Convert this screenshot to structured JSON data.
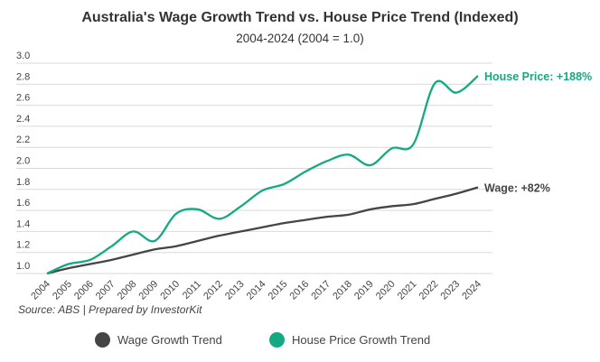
{
  "chart_data": {
    "type": "line",
    "title": "Australia's Wage Growth Trend vs. House Price Trend (Indexed)",
    "subtitle": "2004-2024 (2004 = 1.0)",
    "xlabel": "",
    "ylabel": "",
    "ylim": [
      1.0,
      3.0
    ],
    "yticks": [
      "1.0",
      "1.2",
      "1.4",
      "1.6",
      "1.8",
      "2.0",
      "2.2",
      "2.4",
      "2.6",
      "2.8",
      "3.0"
    ],
    "categories": [
      "2004",
      "2005",
      "2006",
      "2007",
      "2008",
      "2009",
      "2010",
      "2011",
      "2012",
      "2013",
      "2014",
      "2015",
      "2016",
      "2017",
      "2018",
      "2019",
      "2020",
      "2021",
      "2022",
      "2023",
      "2024"
    ],
    "grid": true,
    "legend_placement": "bottom",
    "series": [
      {
        "name": "Wage Growth Trend",
        "color": "#454545",
        "end_label": "Wage: +82%",
        "values": [
          1.0,
          1.05,
          1.09,
          1.13,
          1.18,
          1.23,
          1.26,
          1.31,
          1.36,
          1.4,
          1.44,
          1.48,
          1.51,
          1.54,
          1.56,
          1.61,
          1.64,
          1.66,
          1.71,
          1.76,
          1.82
        ]
      },
      {
        "name": "House Price Growth Trend",
        "color": "#14a982",
        "end_label": "House Price: +188%",
        "values": [
          1.0,
          1.09,
          1.13,
          1.26,
          1.4,
          1.31,
          1.57,
          1.61,
          1.52,
          1.64,
          1.79,
          1.85,
          1.97,
          2.07,
          2.13,
          2.03,
          2.19,
          2.23,
          2.81,
          2.72,
          2.88
        ]
      }
    ],
    "source": "Source: ABS | Prepared by InvestorKit"
  }
}
